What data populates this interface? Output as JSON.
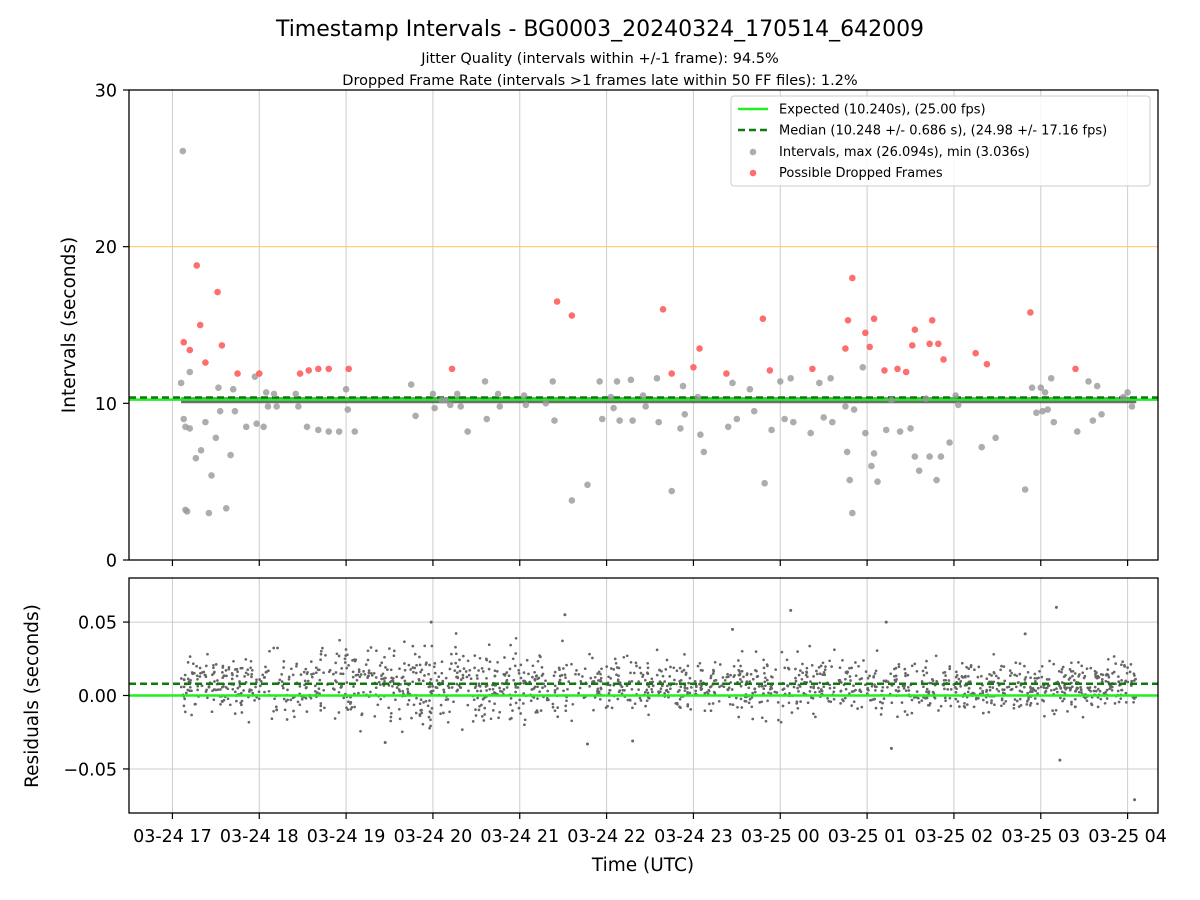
{
  "title": "Timestamp Intervals - BG0003_20240324_170514_642009",
  "subtitle_1": "Jitter Quality (intervals within +/-1 frame): 94.5%",
  "subtitle_2": "Dropped Frame Rate (intervals >1 frames late within 50 FF files): 1.2%",
  "colors": {
    "expected": "#22ee22",
    "median": "#117711",
    "intervals": "#999999",
    "dropped": "#ff5555",
    "threshold": "#ffcc66",
    "residuals": "#666666",
    "grid": "#cccccc"
  },
  "chart_data": [
    {
      "type": "scatter",
      "panel": "top",
      "ylabel": "Intervals (seconds)",
      "ylim": [
        0,
        30
      ],
      "yticks": [
        "0",
        "10",
        "20",
        "30"
      ],
      "ytick_values": [
        0,
        10,
        20,
        30
      ],
      "xlim_hours": [
        16.5,
        28.35
      ],
      "grid": "vertical",
      "legend_placement": "top-right",
      "expected_line_y": 10.24,
      "median_line_y": 10.248,
      "threshold_line_y": 20.0,
      "legend": [
        "Expected (10.240s), (25.00 fps)",
        "Median (10.248 +/- 0.686 s), (24.98 +/- 17.16 fps)",
        "Intervals, max (26.094s), min (3.036s)",
        "Possible Dropped Frames"
      ],
      "dropped_frames": [
        [
          17.13,
          13.9
        ],
        [
          17.2,
          13.4
        ],
        [
          17.28,
          18.8
        ],
        [
          17.32,
          15.0
        ],
        [
          17.38,
          12.6
        ],
        [
          17.52,
          17.1
        ],
        [
          17.57,
          13.7
        ],
        [
          17.75,
          11.9
        ],
        [
          18.0,
          11.9
        ],
        [
          18.47,
          11.9
        ],
        [
          18.57,
          12.1
        ],
        [
          18.68,
          12.2
        ],
        [
          18.8,
          12.2
        ],
        [
          19.03,
          12.2
        ],
        [
          20.22,
          12.2
        ],
        [
          21.43,
          16.5
        ],
        [
          21.6,
          15.6
        ],
        [
          22.65,
          16.0
        ],
        [
          22.75,
          11.9
        ],
        [
          23.0,
          12.3
        ],
        [
          23.07,
          13.5
        ],
        [
          23.38,
          11.9
        ],
        [
          23.8,
          15.4
        ],
        [
          23.88,
          12.1
        ],
        [
          24.37,
          12.2
        ],
        [
          24.75,
          13.5
        ],
        [
          24.78,
          15.3
        ],
        [
          24.83,
          18.0
        ],
        [
          24.98,
          14.5
        ],
        [
          25.03,
          13.6
        ],
        [
          25.08,
          15.4
        ],
        [
          25.2,
          12.1
        ],
        [
          25.35,
          12.2
        ],
        [
          25.45,
          12.0
        ],
        [
          25.52,
          13.7
        ],
        [
          25.55,
          14.7
        ],
        [
          25.72,
          13.8
        ],
        [
          25.75,
          15.3
        ],
        [
          25.82,
          13.8
        ],
        [
          25.88,
          12.8
        ],
        [
          26.25,
          13.2
        ],
        [
          26.38,
          12.5
        ],
        [
          26.88,
          15.8
        ],
        [
          27.4,
          12.2
        ]
      ],
      "intervals": [
        [
          17.12,
          26.1
        ],
        [
          17.1,
          11.3
        ],
        [
          17.13,
          9.0
        ],
        [
          17.15,
          8.5
        ],
        [
          17.15,
          3.2
        ],
        [
          17.17,
          3.1
        ],
        [
          17.2,
          8.4
        ],
        [
          17.2,
          12.0
        ],
        [
          17.27,
          6.5
        ],
        [
          17.33,
          7.0
        ],
        [
          17.38,
          8.8
        ],
        [
          17.42,
          3.0
        ],
        [
          17.45,
          5.4
        ],
        [
          17.5,
          7.8
        ],
        [
          17.53,
          11.0
        ],
        [
          17.55,
          9.5
        ],
        [
          17.62,
          3.3
        ],
        [
          17.67,
          6.7
        ],
        [
          17.7,
          10.9
        ],
        [
          17.72,
          9.5
        ],
        [
          17.85,
          8.5
        ],
        [
          17.95,
          11.7
        ],
        [
          17.97,
          8.7
        ],
        [
          18.05,
          8.5
        ],
        [
          18.08,
          10.7
        ],
        [
          18.1,
          9.8
        ],
        [
          18.17,
          10.6
        ],
        [
          18.2,
          9.8
        ],
        [
          18.42,
          10.6
        ],
        [
          18.45,
          9.8
        ],
        [
          18.55,
          8.5
        ],
        [
          18.68,
          8.3
        ],
        [
          18.8,
          8.2
        ],
        [
          18.92,
          8.2
        ],
        [
          19.0,
          10.9
        ],
        [
          19.02,
          9.6
        ],
        [
          19.1,
          8.2
        ],
        [
          19.75,
          11.2
        ],
        [
          19.8,
          9.2
        ],
        [
          20.0,
          10.6
        ],
        [
          20.02,
          9.7
        ],
        [
          20.1,
          10.2
        ],
        [
          20.15,
          10.2
        ],
        [
          20.2,
          9.9
        ],
        [
          20.28,
          10.6
        ],
        [
          20.32,
          9.8
        ],
        [
          20.4,
          8.2
        ],
        [
          20.6,
          11.4
        ],
        [
          20.62,
          9.0
        ],
        [
          20.75,
          10.6
        ],
        [
          20.77,
          9.8
        ],
        [
          21.05,
          10.5
        ],
        [
          21.07,
          9.9
        ],
        [
          21.3,
          10.0
        ],
        [
          21.38,
          11.4
        ],
        [
          21.4,
          8.9
        ],
        [
          21.6,
          3.8
        ],
        [
          21.78,
          4.8
        ],
        [
          21.92,
          11.4
        ],
        [
          21.95,
          9.0
        ],
        [
          22.05,
          10.4
        ],
        [
          22.08,
          9.7
        ],
        [
          22.12,
          11.4
        ],
        [
          22.15,
          8.9
        ],
        [
          22.28,
          11.5
        ],
        [
          22.3,
          8.9
        ],
        [
          22.42,
          10.5
        ],
        [
          22.45,
          9.8
        ],
        [
          22.58,
          11.6
        ],
        [
          22.6,
          8.8
        ],
        [
          22.75,
          4.4
        ],
        [
          22.85,
          8.4
        ],
        [
          22.88,
          11.1
        ],
        [
          22.9,
          9.3
        ],
        [
          23.05,
          10.4
        ],
        [
          23.08,
          8.0
        ],
        [
          23.12,
          6.9
        ],
        [
          23.4,
          8.5
        ],
        [
          23.45,
          11.3
        ],
        [
          23.5,
          9.0
        ],
        [
          23.65,
          10.9
        ],
        [
          23.7,
          9.5
        ],
        [
          23.82,
          4.9
        ],
        [
          23.9,
          8.3
        ],
        [
          24.0,
          11.4
        ],
        [
          24.05,
          9.0
        ],
        [
          24.12,
          11.6
        ],
        [
          24.15,
          8.8
        ],
        [
          24.35,
          8.1
        ],
        [
          24.45,
          11.3
        ],
        [
          24.5,
          9.1
        ],
        [
          24.58,
          11.6
        ],
        [
          24.6,
          8.8
        ],
        [
          24.75,
          9.8
        ],
        [
          24.77,
          6.9
        ],
        [
          24.8,
          5.1
        ],
        [
          24.85,
          9.6
        ],
        [
          24.83,
          3.0
        ],
        [
          24.95,
          12.3
        ],
        [
          24.98,
          8.1
        ],
        [
          25.05,
          6.0
        ],
        [
          25.08,
          6.8
        ],
        [
          25.12,
          5.0
        ],
        [
          25.22,
          8.3
        ],
        [
          25.28,
          10.2
        ],
        [
          25.38,
          8.2
        ],
        [
          25.5,
          8.4
        ],
        [
          25.55,
          6.6
        ],
        [
          25.6,
          5.7
        ],
        [
          25.68,
          10.3
        ],
        [
          25.72,
          6.6
        ],
        [
          25.8,
          5.1
        ],
        [
          25.85,
          6.6
        ],
        [
          25.95,
          7.5
        ],
        [
          26.02,
          10.5
        ],
        [
          26.05,
          9.9
        ],
        [
          26.32,
          7.2
        ],
        [
          26.48,
          7.8
        ],
        [
          26.82,
          4.5
        ],
        [
          26.9,
          11.0
        ],
        [
          26.95,
          9.4
        ],
        [
          27.0,
          11.0
        ],
        [
          27.02,
          9.5
        ],
        [
          27.05,
          10.7
        ],
        [
          27.08,
          9.6
        ],
        [
          27.12,
          11.6
        ],
        [
          27.15,
          8.8
        ],
        [
          27.42,
          8.2
        ],
        [
          27.55,
          11.4
        ],
        [
          27.6,
          8.9
        ],
        [
          27.65,
          11.1
        ],
        [
          27.7,
          9.3
        ],
        [
          27.95,
          10.4
        ],
        [
          28.0,
          10.7
        ],
        [
          28.05,
          9.8
        ]
      ]
    },
    {
      "type": "scatter",
      "panel": "bottom",
      "ylabel": "Residuals (seconds)",
      "xlabel": "Time (UTC)",
      "ylim": [
        -0.08,
        0.08
      ],
      "yticks": [
        "−0.05",
        "0.00",
        "0.05"
      ],
      "ytick_values": [
        -0.05,
        0.0,
        0.05
      ],
      "xlim_hours": [
        16.5,
        28.35
      ],
      "grid": "both",
      "expected_line_y": 0.0,
      "median_line_y": 0.008,
      "dense_band": {
        "x_range": [
          17.1,
          28.1
        ],
        "center": 0.007,
        "count": 1700
      },
      "notable_points": [
        [
          21.52,
          0.055
        ],
        [
          24.12,
          0.058
        ],
        [
          27.18,
          0.06
        ],
        [
          27.22,
          -0.044
        ],
        [
          28.08,
          -0.071
        ],
        [
          25.22,
          0.05
        ],
        [
          23.45,
          0.045
        ],
        [
          26.82,
          0.042
        ],
        [
          19.98,
          0.05
        ],
        [
          25.28,
          -0.036
        ],
        [
          22.3,
          -0.031
        ],
        [
          19.45,
          -0.032
        ],
        [
          21.78,
          -0.033
        ]
      ],
      "xticks_hours": [
        17,
        18,
        19,
        20,
        21,
        22,
        23,
        24,
        25,
        26,
        27,
        28
      ],
      "xticks": [
        "03-24 17",
        "03-24 18",
        "03-24 19",
        "03-24 20",
        "03-24 21",
        "03-24 22",
        "03-24 23",
        "03-25 00",
        "03-25 01",
        "03-25 02",
        "03-25 03",
        "03-25 04"
      ]
    }
  ]
}
